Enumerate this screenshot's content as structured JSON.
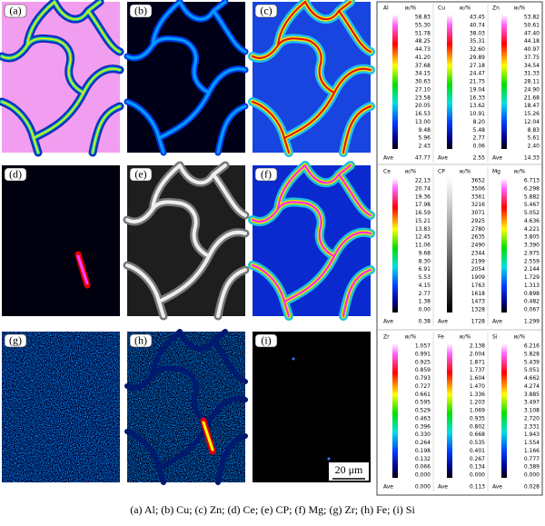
{
  "panels": [
    {
      "label": "(a)"
    },
    {
      "label": "(b)"
    },
    {
      "label": "(c)"
    },
    {
      "label": "(d)"
    },
    {
      "label": "(e)"
    },
    {
      "label": "(f)"
    },
    {
      "label": "(g)"
    },
    {
      "label": "(h)"
    },
    {
      "label": "(i)"
    }
  ],
  "legend": [
    {
      "element": "Al",
      "unit": "w/%",
      "ticks": [
        "58.83",
        "55.30",
        "51.78",
        "48.25",
        "44.73",
        "41.20",
        "37.68",
        "34.15",
        "30.63",
        "27.10",
        "23.58",
        "20.05",
        "16.53",
        "13.00",
        "9.48",
        "5.96",
        "2.43"
      ],
      "ave_label": "Ave",
      "ave": "47.77"
    },
    {
      "element": "Cu",
      "unit": "w/%",
      "ticks": [
        "43.45",
        "40.74",
        "38.03",
        "35.31",
        "32.60",
        "29.89",
        "27.18",
        "24.47",
        "21.75",
        "19.04",
        "16.33",
        "13.62",
        "10.91",
        "8.20",
        "5.48",
        "2.77",
        "0.06"
      ],
      "ave_label": "Ave",
      "ave": "2.55"
    },
    {
      "element": "Zn",
      "unit": "w/%",
      "ticks": [
        "53.82",
        "50.61",
        "47.40",
        "44.18",
        "40.97",
        "37.75",
        "34.54",
        "31.33",
        "28.11",
        "24.90",
        "21.68",
        "18.47",
        "15.26",
        "12.04",
        "8.83",
        "5.61",
        "2.40"
      ],
      "ave_label": "Ave",
      "ave": "14.33"
    },
    {
      "element": "Ce",
      "unit": "w/%",
      "ticks": [
        "22.13",
        "20.74",
        "19.36",
        "17.98",
        "16.59",
        "15.21",
        "13.83",
        "12.45",
        "11.06",
        "9.68",
        "8.30",
        "6.91",
        "5.53",
        "4.15",
        "2.77",
        "1.38",
        "0.00"
      ],
      "ave_label": "Ave",
      "ave": "0.38"
    },
    {
      "element": "CP",
      "unit": "w/%",
      "ticks": [
        "3652",
        "3506",
        "3361",
        "3216",
        "3071",
        "2925",
        "2780",
        "2635",
        "2490",
        "2344",
        "2199",
        "2054",
        "1909",
        "1763",
        "1618",
        "1473",
        "1328"
      ],
      "ave_label": "Ave",
      "ave": "1728",
      "gray": true
    },
    {
      "element": "Mg",
      "unit": "w/%",
      "ticks": [
        "6.713",
        "6.298",
        "5.882",
        "5.467",
        "5.052",
        "4.636",
        "4.221",
        "3.805",
        "3.390",
        "2.975",
        "2.559",
        "2.144",
        "1.729",
        "1.313",
        "0.898",
        "0.482",
        "0.067"
      ],
      "ave_label": "Ave",
      "ave": "1.299"
    },
    {
      "element": "Zr",
      "unit": "w/%",
      "ticks": [
        "1.057",
        "0.991",
        "0.925",
        "0.859",
        "0.793",
        "0.727",
        "0.661",
        "0.595",
        "0.529",
        "0.463",
        "0.396",
        "0.330",
        "0.264",
        "0.198",
        "0.132",
        "0.066",
        "0.000"
      ],
      "ave_label": "Ave",
      "ave": "0.000"
    },
    {
      "element": "Fe",
      "unit": "w/%",
      "ticks": [
        "2.138",
        "2.004",
        "1.871",
        "1.737",
        "1.604",
        "1.470",
        "1.336",
        "1.203",
        "1.069",
        "0.935",
        "0.802",
        "0.668",
        "0.535",
        "0.401",
        "0.267",
        "0.134",
        "0.000"
      ],
      "ave_label": "Ave",
      "ave": "0.113"
    },
    {
      "element": "Si",
      "unit": "w/%",
      "ticks": [
        "6.216",
        "5.828",
        "5.439",
        "5.051",
        "4.662",
        "4.274",
        "3.885",
        "3.497",
        "3.108",
        "2.720",
        "2.331",
        "1.943",
        "1.554",
        "1.166",
        "0.777",
        "0.389",
        "0.000"
      ],
      "ave_label": "Ave",
      "ave": "0.028"
    }
  ],
  "scale_bar": "20 μm",
  "caption": "(a) Al; (b) Cu; (c) Zn; (d) Ce; (e) CP; (f) Mg; (g) Zr; (h) Fe; (i) Si"
}
